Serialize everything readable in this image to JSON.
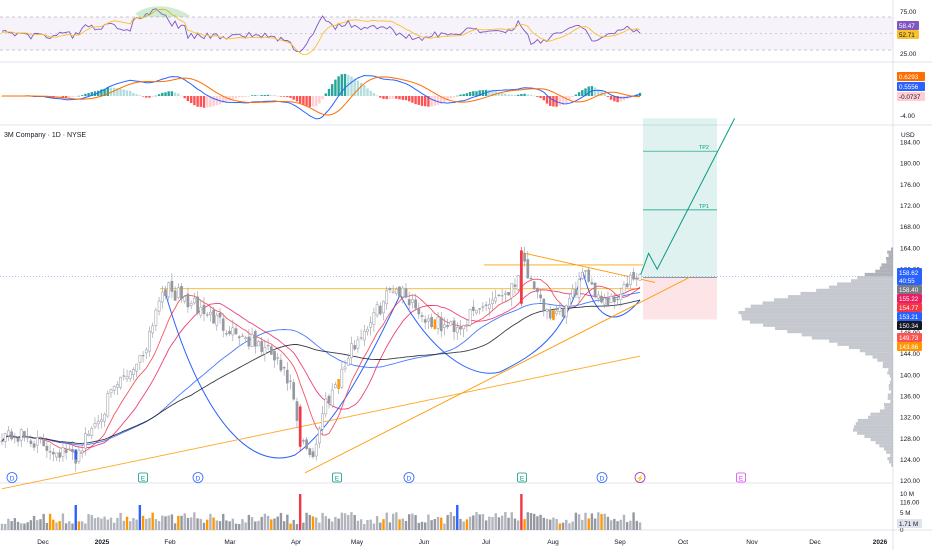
{
  "chart_data": {
    "type": "candlestick",
    "symbol_title": "3M Company · 1D · NYSE",
    "currency_label": "USD",
    "price_axis_ticks": [
      116.0,
      120.0,
      124.0,
      128.0,
      132.0,
      136.0,
      140.0,
      144.0,
      148.0,
      152.0,
      156.0,
      160.0,
      164.0,
      168.0,
      172.0,
      176.0,
      180.0,
      184.0
    ],
    "price_axis_range": [
      116,
      188
    ],
    "time_axis_labels": [
      "Dec",
      "2025",
      "Feb",
      "Mar",
      "Apr",
      "May",
      "Jun",
      "Jul",
      "Aug",
      "Sep",
      "Oct",
      "Nov",
      "Dec",
      "2026"
    ],
    "price_badges": [
      {
        "label": "158.62",
        "color": "#2962ff"
      },
      {
        "label": "40:55",
        "color": "#2962ff"
      },
      {
        "label": "158.40",
        "color": "#787b86"
      },
      {
        "label": "155.22",
        "color": "#e91e63"
      },
      {
        "label": "154.77",
        "color": "#f23645"
      },
      {
        "label": "153.21",
        "color": "#2962ff"
      },
      {
        "label": "150.34",
        "color": "#131722"
      },
      {
        "label": "149.73",
        "color": "#ff5252"
      },
      {
        "label": "143.86",
        "color": "#ff9800"
      }
    ],
    "position_tool": {
      "entry": 158.4,
      "stop": 150.5,
      "target": 188.5,
      "targets": [
        {
          "label": "TP2",
          "price": 182.3
        },
        {
          "label": "TP1",
          "price": 171.2
        }
      ]
    },
    "projection_path": [
      [
        158.6,
        0
      ],
      [
        163.0,
        2
      ],
      [
        160.0,
        4
      ],
      [
        188.5,
        22
      ]
    ],
    "key_levels": [
      156.3,
      160.8
    ],
    "event_markers": [
      {
        "label": "D",
        "kind": "dividend",
        "color": "#2962ff"
      },
      {
        "label": "E",
        "kind": "earnings",
        "color": "#089981"
      },
      {
        "label": "D",
        "kind": "dividend",
        "color": "#2962ff"
      },
      {
        "label": "E",
        "kind": "earnings",
        "color": "#089981"
      },
      {
        "label": "D",
        "kind": "dividend",
        "color": "#2962ff"
      },
      {
        "label": "E",
        "kind": "earnings",
        "color": "#089981"
      },
      {
        "label": "D",
        "kind": "dividend",
        "color": "#2962ff"
      },
      {
        "label": "⚡",
        "kind": "split",
        "color": "#9c27b0"
      },
      {
        "label": "E",
        "kind": "earnings",
        "color": "#e040fb"
      }
    ],
    "volume_axis_ticks": [
      "10 M",
      "5 M",
      "0"
    ],
    "volume_badge": "1.71 M",
    "rsi": {
      "ticks": [
        "75.00",
        "25.00"
      ],
      "badges": [
        {
          "label": "58.47",
          "color": "#7e57c2"
        },
        {
          "label": "52.71",
          "color": "#fbc02d"
        }
      ]
    },
    "macd": {
      "ticks": [
        "-4.00"
      ],
      "badges": [
        {
          "label": "0.6293",
          "color": "#ff6d00"
        },
        {
          "label": "0.5556",
          "color": "#2962ff"
        },
        {
          "label": "-0.0737",
          "color": "#ffcdd2"
        }
      ]
    }
  }
}
